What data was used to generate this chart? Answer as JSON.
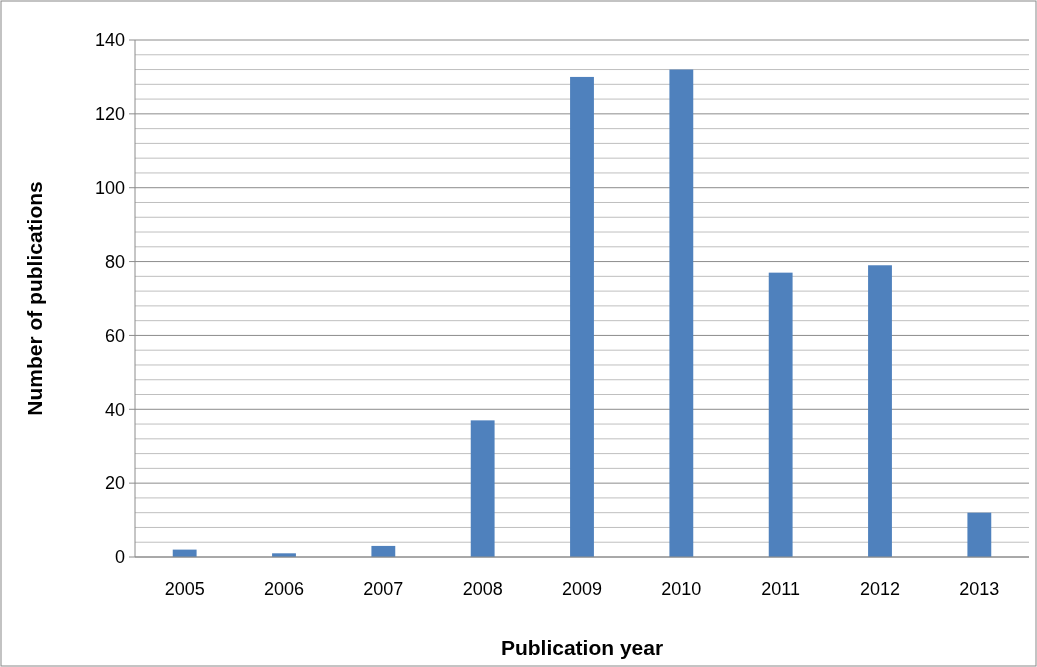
{
  "chart_data": {
    "type": "bar",
    "xlabel": "Publication year",
    "ylabel": "Number of publications",
    "categories": [
      "2005",
      "2006",
      "2007",
      "2008",
      "2009",
      "2010",
      "2011",
      "2012",
      "2013"
    ],
    "values": [
      2,
      1,
      3,
      37,
      130,
      132,
      77,
      79,
      12
    ],
    "color": "#4f81bd",
    "ylim": [
      0,
      140
    ],
    "yticks": [
      0,
      {
        "value": 4,
        "label": null
      },
      {
        "value": 8,
        "label": null
      },
      {
        "value": 12,
        "label": null
      },
      {
        "value": 16,
        "label": null
      },
      20,
      {
        "value": 24,
        "label": null
      },
      {
        "value": 28,
        "label": null
      },
      {
        "value": 32,
        "label": null
      },
      {
        "value": 36,
        "label": null
      },
      40,
      {
        "value": 44,
        "label": null
      },
      {
        "value": 48,
        "label": null
      },
      {
        "value": 52,
        "label": null
      },
      {
        "value": 56,
        "label": null
      },
      60,
      {
        "value": 64,
        "label": null
      },
      {
        "value": 68,
        "label": null
      },
      {
        "value": 72,
        "label": null
      },
      {
        "value": 76,
        "label": null
      },
      80,
      {
        "value": 84,
        "label": null
      },
      {
        "value": 88,
        "label": null
      },
      {
        "value": 92,
        "label": null
      },
      {
        "value": 96,
        "label": null
      },
      100,
      {
        "value": 104,
        "label": null
      },
      {
        "value": 108,
        "label": null
      },
      {
        "value": 112,
        "label": null
      },
      {
        "value": 116,
        "label": null
      },
      120,
      {
        "value": 124,
        "label": null
      },
      {
        "value": 128,
        "label": null
      },
      {
        "value": 132,
        "label": null
      },
      {
        "value": 136,
        "label": null
      },
      140
    ],
    "grid": "y"
  }
}
